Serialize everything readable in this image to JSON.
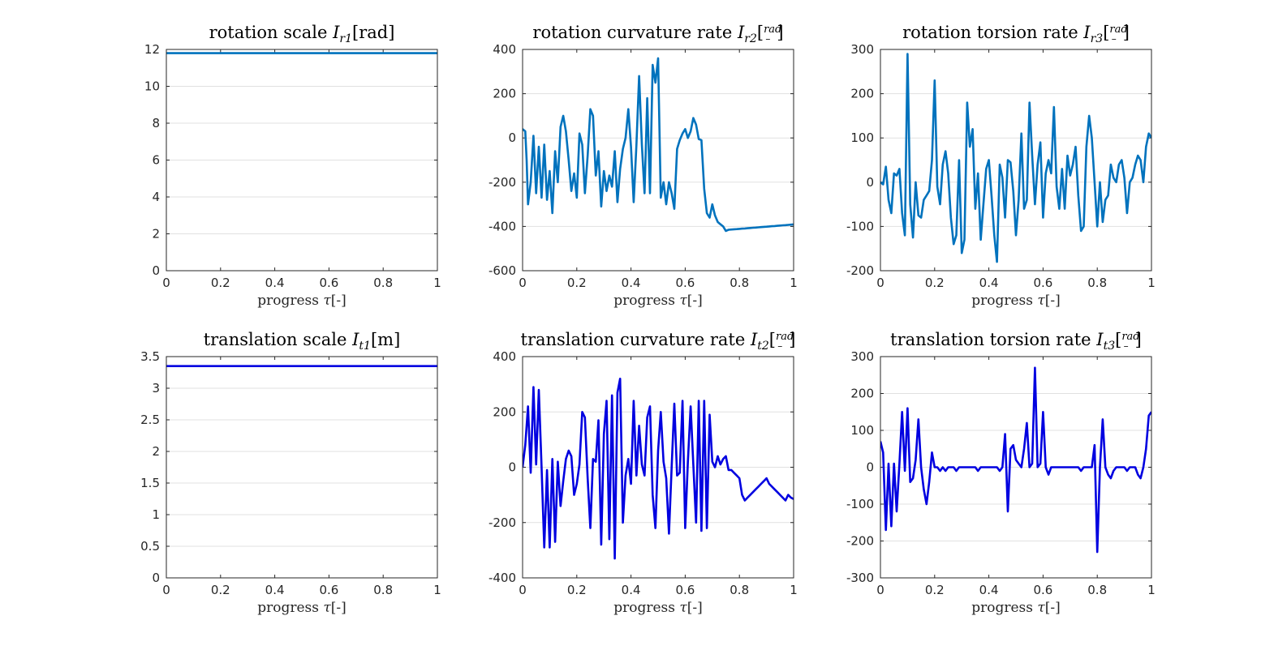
{
  "figure": {
    "background": "#ffffff"
  },
  "chart_data": [
    {
      "type": "line",
      "title_main": "rotation scale ",
      "title_math": "I",
      "title_sub": "r1",
      "title_unit": "[rad]",
      "xlabel_main": "progress ",
      "xlabel_sym": "τ",
      "xlabel_unit": "[-]",
      "xlim": [
        0,
        1
      ],
      "ylim": [
        0,
        12
      ],
      "xticks": [
        "0",
        "0.2",
        "0.4",
        "0.6",
        "0.8",
        "1"
      ],
      "yticks": [
        "0",
        "2",
        "4",
        "6",
        "8",
        "10",
        "12"
      ],
      "color": "#0072bd",
      "series": [
        {
          "x": [
            0,
            1
          ],
          "y": [
            11.8,
            11.8
          ]
        }
      ]
    },
    {
      "type": "line",
      "title_main": "rotation curvature rate ",
      "title_math": "I",
      "title_sub": "r2",
      "title_frac_num": "rad",
      "title_frac_den": "–",
      "xlabel_main": "progress ",
      "xlabel_sym": "τ",
      "xlabel_unit": "[-]",
      "xlim": [
        0,
        1
      ],
      "ylim": [
        -600,
        400
      ],
      "xticks": [
        "0",
        "0.2",
        "0.4",
        "0.6",
        "0.8",
        "1"
      ],
      "yticks": [
        "-600",
        "-400",
        "-200",
        "0",
        "200",
        "400"
      ],
      "color": "#0072bd",
      "series": [
        {
          "x": [
            0,
            0.01,
            0.015,
            0.02,
            0.03,
            0.04,
            0.05,
            0.06,
            0.07,
            0.08,
            0.09,
            0.1,
            0.11,
            0.12,
            0.13,
            0.14,
            0.15,
            0.16,
            0.17,
            0.18,
            0.19,
            0.2,
            0.21,
            0.22,
            0.23,
            0.24,
            0.25,
            0.26,
            0.27,
            0.28,
            0.29,
            0.3,
            0.31,
            0.32,
            0.33,
            0.34,
            0.35,
            0.36,
            0.37,
            0.38,
            0.39,
            0.4,
            0.41,
            0.42,
            0.43,
            0.44,
            0.45,
            0.46,
            0.47,
            0.48,
            0.49,
            0.5,
            0.51,
            0.52,
            0.53,
            0.54,
            0.55,
            0.56,
            0.57,
            0.58,
            0.59,
            0.6,
            0.61,
            0.62,
            0.63,
            0.64,
            0.65,
            0.66,
            0.67,
            0.68,
            0.69,
            0.7,
            0.71,
            0.72,
            0.73,
            0.74,
            0.75,
            0.76,
            0.77,
            0.78,
            0.79,
            0.8,
            0.81,
            0.82,
            0.83,
            0.84,
            0.85,
            0.86,
            0.87,
            0.88,
            0.89,
            0.9,
            0.91,
            0.92,
            0.93,
            0.94,
            0.95,
            0.96,
            0.97,
            0.98,
            0.99,
            1.0
          ],
          "y": [
            40,
            30,
            -100,
            -300,
            -200,
            10,
            -250,
            -40,
            -270,
            -30,
            -280,
            -150,
            -340,
            -60,
            -200,
            50,
            100,
            30,
            -100,
            -240,
            -160,
            -270,
            20,
            -30,
            -250,
            -80,
            130,
            100,
            -170,
            -60,
            -310,
            -150,
            -240,
            -170,
            -220,
            -60,
            -290,
            -140,
            -50,
            0,
            130,
            -40,
            -290,
            -30,
            280,
            -30,
            -250,
            180,
            -250,
            330,
            250,
            360,
            -270,
            -200,
            -300,
            -200,
            -250,
            -320,
            -50,
            -10,
            20,
            40,
            0,
            30,
            90,
            60,
            -5,
            -10,
            -230,
            -340,
            -360,
            -300,
            -350,
            -380,
            -390,
            -400,
            -420,
            -415,
            -414,
            -413,
            -412,
            -411,
            -410,
            -409,
            -408,
            -407,
            -406,
            -405,
            -404,
            -403,
            -402,
            -401,
            -400,
            -399,
            -398,
            -397,
            -396,
            -395,
            -394,
            -393,
            -392,
            -391
          ]
        }
      ]
    },
    {
      "type": "line",
      "title_main": "rotation torsion rate ",
      "title_math": "I",
      "title_sub": "r3",
      "title_frac_num": "rad",
      "title_frac_den": "–",
      "xlabel_main": "progress ",
      "xlabel_sym": "τ",
      "xlabel_unit": "[-]",
      "xlim": [
        0,
        1
      ],
      "ylim": [
        -200,
        300
      ],
      "xticks": [
        "0",
        "0.2",
        "0.4",
        "0.6",
        "0.8",
        "1"
      ],
      "yticks": [
        "-200",
        "-100",
        "0",
        "100",
        "200",
        "300"
      ],
      "color": "#0072bd",
      "series": [
        {
          "x": [
            0,
            0.01,
            0.02,
            0.03,
            0.04,
            0.05,
            0.06,
            0.07,
            0.08,
            0.09,
            0.1,
            0.11,
            0.12,
            0.13,
            0.14,
            0.15,
            0.16,
            0.17,
            0.18,
            0.19,
            0.2,
            0.21,
            0.22,
            0.23,
            0.24,
            0.25,
            0.26,
            0.27,
            0.28,
            0.29,
            0.3,
            0.31,
            0.32,
            0.33,
            0.34,
            0.35,
            0.36,
            0.37,
            0.38,
            0.39,
            0.4,
            0.41,
            0.42,
            0.43,
            0.44,
            0.45,
            0.46,
            0.47,
            0.48,
            0.49,
            0.5,
            0.51,
            0.52,
            0.53,
            0.54,
            0.55,
            0.56,
            0.57,
            0.58,
            0.59,
            0.6,
            0.61,
            0.62,
            0.63,
            0.64,
            0.65,
            0.66,
            0.67,
            0.68,
            0.69,
            0.7,
            0.71,
            0.72,
            0.73,
            0.74,
            0.75,
            0.76,
            0.77,
            0.78,
            0.79,
            0.8,
            0.81,
            0.82,
            0.83,
            0.84,
            0.85,
            0.86,
            0.87,
            0.88,
            0.89,
            0.9,
            0.91,
            0.92,
            0.93,
            0.94,
            0.95,
            0.96,
            0.97,
            0.98,
            0.99,
            1.0
          ],
          "y": [
            0,
            -5,
            35,
            -40,
            -70,
            20,
            15,
            30,
            -70,
            -120,
            290,
            -50,
            -125,
            0,
            -75,
            -80,
            -40,
            -30,
            -20,
            50,
            230,
            -10,
            -50,
            40,
            70,
            20,
            -80,
            -140,
            -120,
            50,
            -160,
            -130,
            180,
            80,
            120,
            -60,
            20,
            -130,
            -50,
            30,
            50,
            -30,
            -120,
            -180,
            40,
            10,
            -80,
            50,
            45,
            -20,
            -120,
            -40,
            110,
            -60,
            -40,
            180,
            60,
            -50,
            40,
            90,
            -80,
            20,
            50,
            20,
            170,
            -10,
            -60,
            30,
            -60,
            60,
            15,
            40,
            80,
            -30,
            -110,
            -100,
            80,
            150,
            100,
            0,
            -100,
            0,
            -90,
            -40,
            -30,
            40,
            10,
            0,
            40,
            50,
            10,
            -70,
            0,
            10,
            40,
            60,
            50,
            0,
            80,
            110,
            100
          ]
        }
      ]
    },
    {
      "type": "line",
      "title_main": "translation scale ",
      "title_math": "I",
      "title_sub": "t1",
      "title_unit": "[m]",
      "xlabel_main": "progress ",
      "xlabel_sym": "τ",
      "xlabel_unit": "[-]",
      "xlim": [
        0,
        1
      ],
      "ylim": [
        0,
        3.5
      ],
      "xticks": [
        "0",
        "0.2",
        "0.4",
        "0.6",
        "0.8",
        "1"
      ],
      "yticks": [
        "0",
        "0.5",
        "1",
        "1.5",
        "2",
        "2.5",
        "3",
        "3.5"
      ],
      "color": "#0000e0",
      "series": [
        {
          "x": [
            0,
            1
          ],
          "y": [
            3.35,
            3.35
          ]
        }
      ]
    },
    {
      "type": "line",
      "title_main": "translation curvature rate ",
      "title_math": "I",
      "title_sub": "t2",
      "title_frac_num": "rad",
      "title_frac_den": "–",
      "xlabel_main": "progress ",
      "xlabel_sym": "τ",
      "xlabel_unit": "[-]",
      "xlim": [
        0,
        1
      ],
      "ylim": [
        -400,
        400
      ],
      "xticks": [
        "0",
        "0.2",
        "0.4",
        "0.6",
        "0.8",
        "1"
      ],
      "yticks": [
        "-400",
        "-200",
        "0",
        "200",
        "400"
      ],
      "color": "#0000e0",
      "series": [
        {
          "x": [
            0,
            0.01,
            0.02,
            0.03,
            0.04,
            0.05,
            0.06,
            0.07,
            0.08,
            0.09,
            0.1,
            0.11,
            0.12,
            0.13,
            0.14,
            0.15,
            0.16,
            0.17,
            0.18,
            0.19,
            0.2,
            0.21,
            0.22,
            0.23,
            0.24,
            0.25,
            0.26,
            0.27,
            0.28,
            0.29,
            0.3,
            0.31,
            0.32,
            0.33,
            0.34,
            0.35,
            0.36,
            0.37,
            0.38,
            0.39,
            0.4,
            0.41,
            0.42,
            0.43,
            0.44,
            0.45,
            0.46,
            0.47,
            0.48,
            0.49,
            0.5,
            0.51,
            0.52,
            0.53,
            0.54,
            0.55,
            0.56,
            0.57,
            0.58,
            0.59,
            0.6,
            0.61,
            0.62,
            0.63,
            0.64,
            0.65,
            0.66,
            0.67,
            0.68,
            0.69,
            0.7,
            0.71,
            0.72,
            0.73,
            0.74,
            0.75,
            0.76,
            0.77,
            0.78,
            0.79,
            0.8,
            0.81,
            0.82,
            0.83,
            0.84,
            0.85,
            0.86,
            0.87,
            0.88,
            0.89,
            0.9,
            0.91,
            0.92,
            0.93,
            0.94,
            0.95,
            0.96,
            0.97,
            0.98,
            0.99,
            1.0
          ],
          "y": [
            0,
            80,
            220,
            -20,
            290,
            10,
            280,
            0,
            -290,
            -10,
            -290,
            30,
            -270,
            20,
            -140,
            -50,
            30,
            60,
            40,
            -100,
            -60,
            10,
            200,
            180,
            -40,
            -220,
            30,
            20,
            170,
            -280,
            120,
            240,
            -260,
            260,
            -330,
            270,
            320,
            -200,
            -30,
            30,
            -60,
            240,
            -30,
            150,
            10,
            -30,
            180,
            220,
            -100,
            -220,
            60,
            200,
            20,
            -40,
            -240,
            0,
            230,
            -30,
            -20,
            240,
            -220,
            20,
            220,
            10,
            -200,
            240,
            -230,
            240,
            -220,
            190,
            20,
            0,
            40,
            10,
            30,
            40,
            -10,
            -10,
            -20,
            -30,
            -40,
            -100,
            -120,
            -110,
            -100,
            -90,
            -80,
            -70,
            -60,
            -50,
            -40,
            -60,
            -70,
            -80,
            -90,
            -100,
            -110,
            -120,
            -100,
            -110,
            -115
          ]
        }
      ]
    },
    {
      "type": "line",
      "title_main": "translation torsion rate ",
      "title_math": "I",
      "title_sub": "t3",
      "title_frac_num": "rad",
      "title_frac_den": "–",
      "xlabel_main": "progress ",
      "xlabel_sym": "τ",
      "xlabel_unit": "[-]",
      "xlim": [
        0,
        1
      ],
      "ylim": [
        -300,
        300
      ],
      "xticks": [
        "0",
        "0.2",
        "0.4",
        "0.6",
        "0.8",
        "1"
      ],
      "yticks": [
        "-300",
        "-200",
        "-100",
        "0",
        "100",
        "200",
        "300"
      ],
      "color": "#0000e0",
      "series": [
        {
          "x": [
            0,
            0.01,
            0.02,
            0.03,
            0.04,
            0.05,
            0.06,
            0.07,
            0.08,
            0.09,
            0.1,
            0.11,
            0.12,
            0.13,
            0.14,
            0.15,
            0.16,
            0.17,
            0.18,
            0.19,
            0.2,
            0.21,
            0.22,
            0.23,
            0.24,
            0.25,
            0.26,
            0.27,
            0.28,
            0.29,
            0.3,
            0.31,
            0.32,
            0.33,
            0.34,
            0.35,
            0.36,
            0.37,
            0.38,
            0.39,
            0.4,
            0.41,
            0.42,
            0.43,
            0.44,
            0.45,
            0.46,
            0.47,
            0.48,
            0.49,
            0.5,
            0.51,
            0.52,
            0.53,
            0.54,
            0.55,
            0.56,
            0.57,
            0.58,
            0.59,
            0.6,
            0.61,
            0.62,
            0.63,
            0.64,
            0.65,
            0.66,
            0.67,
            0.68,
            0.69,
            0.7,
            0.71,
            0.72,
            0.73,
            0.74,
            0.75,
            0.76,
            0.77,
            0.78,
            0.79,
            0.8,
            0.81,
            0.82,
            0.83,
            0.84,
            0.85,
            0.86,
            0.87,
            0.88,
            0.89,
            0.9,
            0.91,
            0.92,
            0.93,
            0.94,
            0.95,
            0.96,
            0.97,
            0.98,
            0.99,
            1.0
          ],
          "y": [
            70,
            40,
            -170,
            10,
            -160,
            10,
            -120,
            10,
            150,
            -10,
            160,
            -40,
            -30,
            20,
            130,
            0,
            -60,
            -100,
            -40,
            40,
            0,
            0,
            -10,
            0,
            -10,
            0,
            0,
            0,
            -10,
            0,
            0,
            0,
            0,
            0,
            0,
            0,
            -10,
            0,
            0,
            0,
            0,
            0,
            0,
            0,
            -10,
            0,
            90,
            -120,
            50,
            60,
            20,
            10,
            0,
            50,
            120,
            0,
            10,
            270,
            0,
            10,
            150,
            0,
            -20,
            0,
            0,
            0,
            0,
            0,
            0,
            0,
            0,
            0,
            0,
            0,
            -10,
            0,
            0,
            0,
            0,
            60,
            -230,
            0,
            130,
            0,
            -20,
            -30,
            -10,
            0,
            0,
            0,
            0,
            -10,
            0,
            0,
            0,
            -20,
            -30,
            0,
            50,
            140,
            150
          ]
        }
      ]
    }
  ]
}
